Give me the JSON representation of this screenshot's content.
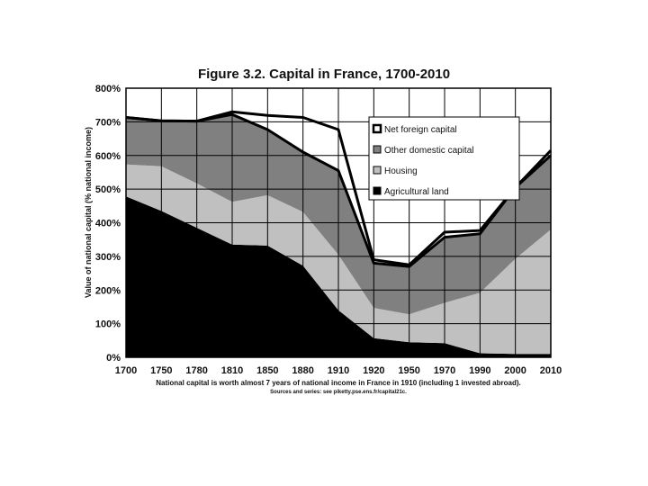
{
  "chart_data": {
    "type": "area",
    "title": "Figure 3.2. Capital in France, 1700-2010",
    "ylabel": "Value of national capital (% national income)",
    "xlabel": "",
    "categories": [
      "1700",
      "1750",
      "1780",
      "1810",
      "1850",
      "1880",
      "1910",
      "1920",
      "1950",
      "1970",
      "1990",
      "2000",
      "2010"
    ],
    "ylim": [
      0,
      800
    ],
    "yticks": [
      "0%",
      "100%",
      "200%",
      "300%",
      "400%",
      "500%",
      "600%",
      "700%",
      "800%"
    ],
    "grid": true,
    "legend_position": "top-right",
    "stacked": true,
    "series": [
      {
        "name": "Agricultural land",
        "color": "#000000",
        "values": [
          478,
          435,
          385,
          335,
          332,
          272,
          140,
          57,
          45,
          42,
          12,
          10,
          10
        ]
      },
      {
        "name": "Housing",
        "color": "#c0c0c0",
        "values": [
          95,
          133,
          132,
          127,
          150,
          160,
          165,
          90,
          83,
          120,
          180,
          283,
          370
        ]
      },
      {
        "name": "Other domestic capital",
        "color": "#808080",
        "values": [
          140,
          135,
          185,
          260,
          195,
          178,
          250,
          133,
          142,
          195,
          175,
          212,
          220
        ]
      },
      {
        "name": "Net foreign capital",
        "color": "#ffffff",
        "values": [
          0,
          0,
          0,
          8,
          42,
          103,
          122,
          10,
          5,
          15,
          10,
          0,
          15
        ]
      }
    ],
    "caption": "National capital is worth almost 7 years of national income in France in 1910 (including 1 invested abroad).",
    "source": "Sources and series: see piketty.pse.ens.fr/capital21c."
  }
}
